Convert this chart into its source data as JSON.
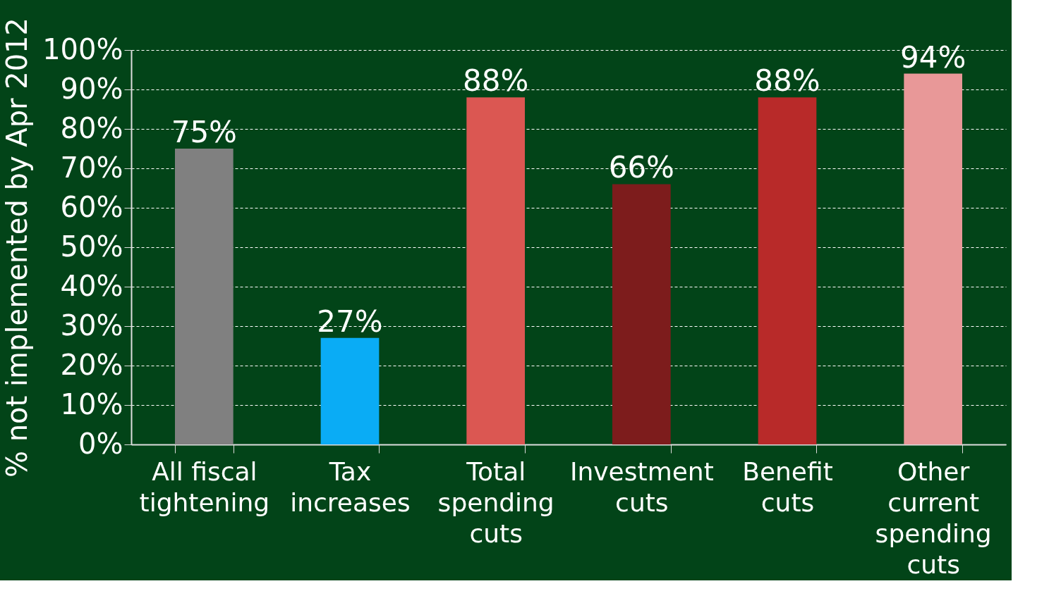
{
  "chart_data": {
    "type": "bar",
    "ylabel": "% not implemented by Apr 2012",
    "categories": [
      "All fiscal\ntightening",
      "Tax\nincreases",
      "Total\nspending\ncuts",
      "Investment\ncuts",
      "Benefit\ncuts",
      "Other\ncurrent\nspending\ncuts"
    ],
    "values": [
      75,
      27,
      88,
      66,
      88,
      94
    ],
    "colors": [
      "#808080",
      "#0aacf5",
      "#db5752",
      "#7d1c1c",
      "#b82a29",
      "#e89898"
    ],
    "value_labels": [
      "75%",
      "27%",
      "88%",
      "66%",
      "88%",
      "94%"
    ],
    "ylim": [
      0,
      100
    ],
    "yticks": [
      {
        "value": 0,
        "label": "0%"
      },
      {
        "value": 10,
        "label": "10%"
      },
      {
        "value": 20,
        "label": "20%"
      },
      {
        "value": 30,
        "label": "30%"
      },
      {
        "value": 40,
        "label": "40%"
      },
      {
        "value": 50,
        "label": "50%"
      },
      {
        "value": 60,
        "label": "60%"
      },
      {
        "value": 70,
        "label": "70%"
      },
      {
        "value": 80,
        "label": "80%"
      },
      {
        "value": 90,
        "label": "90%"
      },
      {
        "value": 100,
        "label": "100%"
      }
    ],
    "grid": "y",
    "legend": false
  }
}
